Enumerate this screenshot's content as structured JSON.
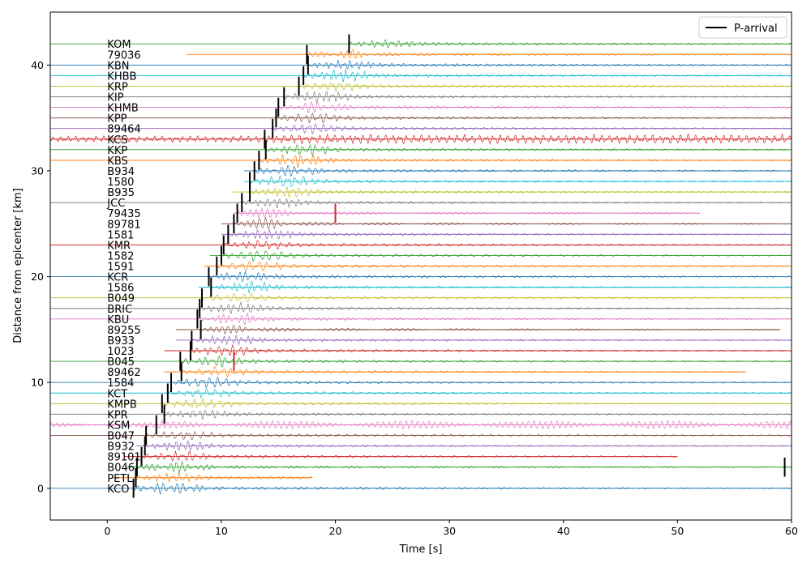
{
  "chart_data": {
    "type": "line",
    "title": "",
    "xlabel": "Time [s]",
    "ylabel": "Distance from epicenter [km]",
    "xlim": [
      -5,
      60
    ],
    "ylim": [
      -3,
      45
    ],
    "xticks": [
      0,
      10,
      20,
      30,
      40,
      50,
      60
    ],
    "yticks": [
      0,
      10,
      20,
      30,
      40
    ],
    "grid": false,
    "legend": {
      "placement": "top-right",
      "entries": [
        {
          "label": "P-arrival",
          "color": "#000000"
        }
      ]
    },
    "series": [
      {
        "name": "KCO",
        "y": 0,
        "color": "#1f77b4",
        "p_arrival": 2.3,
        "extent": [
          -5,
          60
        ]
      },
      {
        "name": "PETL",
        "y": 1,
        "color": "#ff7f0e",
        "p_arrival": 2.5,
        "extent": [
          0.5,
          18
        ]
      },
      {
        "name": "B046",
        "y": 2,
        "color": "#2ca02c",
        "p_arrival": 2.6,
        "extent": [
          1.5,
          60
        ]
      },
      {
        "name": "89101",
        "y": 3,
        "color": "#d62728",
        "p_arrival": 3.0,
        "extent": [
          1.5,
          50
        ]
      },
      {
        "name": "B932",
        "y": 4,
        "color": "#9467bd",
        "p_arrival": 3.3,
        "extent": [
          2.5,
          60
        ]
      },
      {
        "name": "B047",
        "y": 5,
        "color": "#8c564b",
        "p_arrival": 3.4,
        "extent": [
          -5,
          60
        ]
      },
      {
        "name": "KSM",
        "y": 6,
        "color": "#e377c2",
        "p_arrival": 4.3,
        "extent": [
          -5,
          60
        ]
      },
      {
        "name": "KPR",
        "y": 7,
        "color": "#7f7f7f",
        "p_arrival": 5.0,
        "extent": [
          -5,
          60
        ]
      },
      {
        "name": "KMPB",
        "y": 8,
        "color": "#bcbd22",
        "p_arrival": 4.8,
        "extent": [
          -5,
          60
        ]
      },
      {
        "name": "KCT",
        "y": 9,
        "color": "#17becf",
        "p_arrival": 5.3,
        "extent": [
          -5,
          60
        ]
      },
      {
        "name": "1584",
        "y": 10,
        "color": "#1f77b4",
        "p_arrival": 5.6,
        "extent": [
          -5,
          60
        ]
      },
      {
        "name": "89462",
        "y": 11,
        "color": "#ff7f0e",
        "p_arrival": 6.5,
        "extent": [
          5,
          56
        ]
      },
      {
        "name": "B045",
        "y": 12,
        "color": "#2ca02c",
        "p_arrival": 6.4,
        "extent": [
          -5,
          60
        ]
      },
      {
        "name": "1023",
        "y": 13,
        "color": "#d62728",
        "p_arrival": 7.3,
        "extent": [
          5,
          60
        ]
      },
      {
        "name": "B933",
        "y": 14,
        "color": "#9467bd",
        "p_arrival": 7.4,
        "extent": [
          6,
          60
        ]
      },
      {
        "name": "89255",
        "y": 15,
        "color": "#8c564b",
        "p_arrival": 8.2,
        "extent": [
          6,
          59
        ]
      },
      {
        "name": "KBU",
        "y": 16,
        "color": "#e377c2",
        "p_arrival": 7.9,
        "extent": [
          -5,
          60
        ]
      },
      {
        "name": "BRIC",
        "y": 17,
        "color": "#7f7f7f",
        "p_arrival": 8.1,
        "extent": [
          -5,
          60
        ]
      },
      {
        "name": "B049",
        "y": 18,
        "color": "#bcbd22",
        "p_arrival": 8.3,
        "extent": [
          -5,
          60
        ]
      },
      {
        "name": "1586",
        "y": 19,
        "color": "#17becf",
        "p_arrival": 9.1,
        "extent": [
          8,
          60
        ]
      },
      {
        "name": "KCR",
        "y": 20,
        "color": "#1f77b4",
        "p_arrival": 8.9,
        "extent": [
          -5,
          60
        ]
      },
      {
        "name": "1591",
        "y": 21,
        "color": "#ff7f0e",
        "p_arrival": 9.6,
        "extent": [
          8.5,
          60
        ]
      },
      {
        "name": "1582",
        "y": 22,
        "color": "#2ca02c",
        "p_arrival": 10.0,
        "extent": [
          9,
          60
        ]
      },
      {
        "name": "KMR",
        "y": 23,
        "color": "#d62728",
        "p_arrival": 10.2,
        "extent": [
          -5,
          60
        ]
      },
      {
        "name": "1581",
        "y": 24,
        "color": "#9467bd",
        "p_arrival": 10.6,
        "extent": [
          10,
          60
        ]
      },
      {
        "name": "89781",
        "y": 25,
        "color": "#8c564b",
        "p_arrival": 11.1,
        "extent": [
          10,
          60
        ]
      },
      {
        "name": "79435",
        "y": 26,
        "color": "#e377c2",
        "p_arrival": 11.4,
        "extent": [
          11,
          52
        ]
      },
      {
        "name": "JCC",
        "y": 27,
        "color": "#7f7f7f",
        "p_arrival": 11.8,
        "extent": [
          -5,
          60
        ]
      },
      {
        "name": "B935",
        "y": 28,
        "color": "#bcbd22",
        "p_arrival": 12.5,
        "extent": [
          11,
          60
        ]
      },
      {
        "name": "1580",
        "y": 29,
        "color": "#17becf",
        "p_arrival": 12.5,
        "extent": [
          12,
          60
        ]
      },
      {
        "name": "B934",
        "y": 30,
        "color": "#1f77b4",
        "p_arrival": 12.9,
        "extent": [
          12,
          60
        ]
      },
      {
        "name": "KBS",
        "y": 31,
        "color": "#ff7f0e",
        "p_arrival": 13.3,
        "extent": [
          -5,
          60
        ]
      },
      {
        "name": "KKP",
        "y": 32,
        "color": "#2ca02c",
        "p_arrival": 13.9,
        "extent": [
          -5,
          60
        ]
      },
      {
        "name": "KCS",
        "y": 33,
        "color": "#d62728",
        "p_arrival": 13.8,
        "extent": [
          -5,
          60
        ]
      },
      {
        "name": "89464",
        "y": 34,
        "color": "#9467bd",
        "p_arrival": 14.5,
        "extent": [
          -5,
          60
        ]
      },
      {
        "name": "KPP",
        "y": 35,
        "color": "#8c564b",
        "p_arrival": 14.8,
        "extent": [
          -5,
          60
        ]
      },
      {
        "name": "KHMB",
        "y": 36,
        "color": "#e377c2",
        "p_arrival": 15.0,
        "extent": [
          -5,
          60
        ]
      },
      {
        "name": "KIP",
        "y": 37,
        "color": "#7f7f7f",
        "p_arrival": 15.5,
        "extent": [
          -5,
          60
        ]
      },
      {
        "name": "KRP",
        "y": 38,
        "color": "#bcbd22",
        "p_arrival": 16.8,
        "extent": [
          -5,
          60
        ]
      },
      {
        "name": "KHBB",
        "y": 39,
        "color": "#17becf",
        "p_arrival": 17.2,
        "extent": [
          -5,
          60
        ]
      },
      {
        "name": "KBN",
        "y": 40,
        "color": "#1f77b4",
        "p_arrival": 17.6,
        "extent": [
          -5,
          60
        ]
      },
      {
        "name": "79036",
        "y": 41,
        "color": "#ff7f0e",
        "p_arrival": 17.5,
        "extent": [
          7,
          60
        ]
      },
      {
        "name": "KOM",
        "y": 42,
        "color": "#2ca02c",
        "p_arrival": 21.2,
        "extent": [
          -5,
          60
        ]
      }
    ],
    "red_markers": [
      {
        "x": 11.1,
        "y": 12
      },
      {
        "x": 20.0,
        "y": 26
      }
    ],
    "stray_markers": [
      {
        "x": 59.4,
        "y": 2
      }
    ]
  }
}
